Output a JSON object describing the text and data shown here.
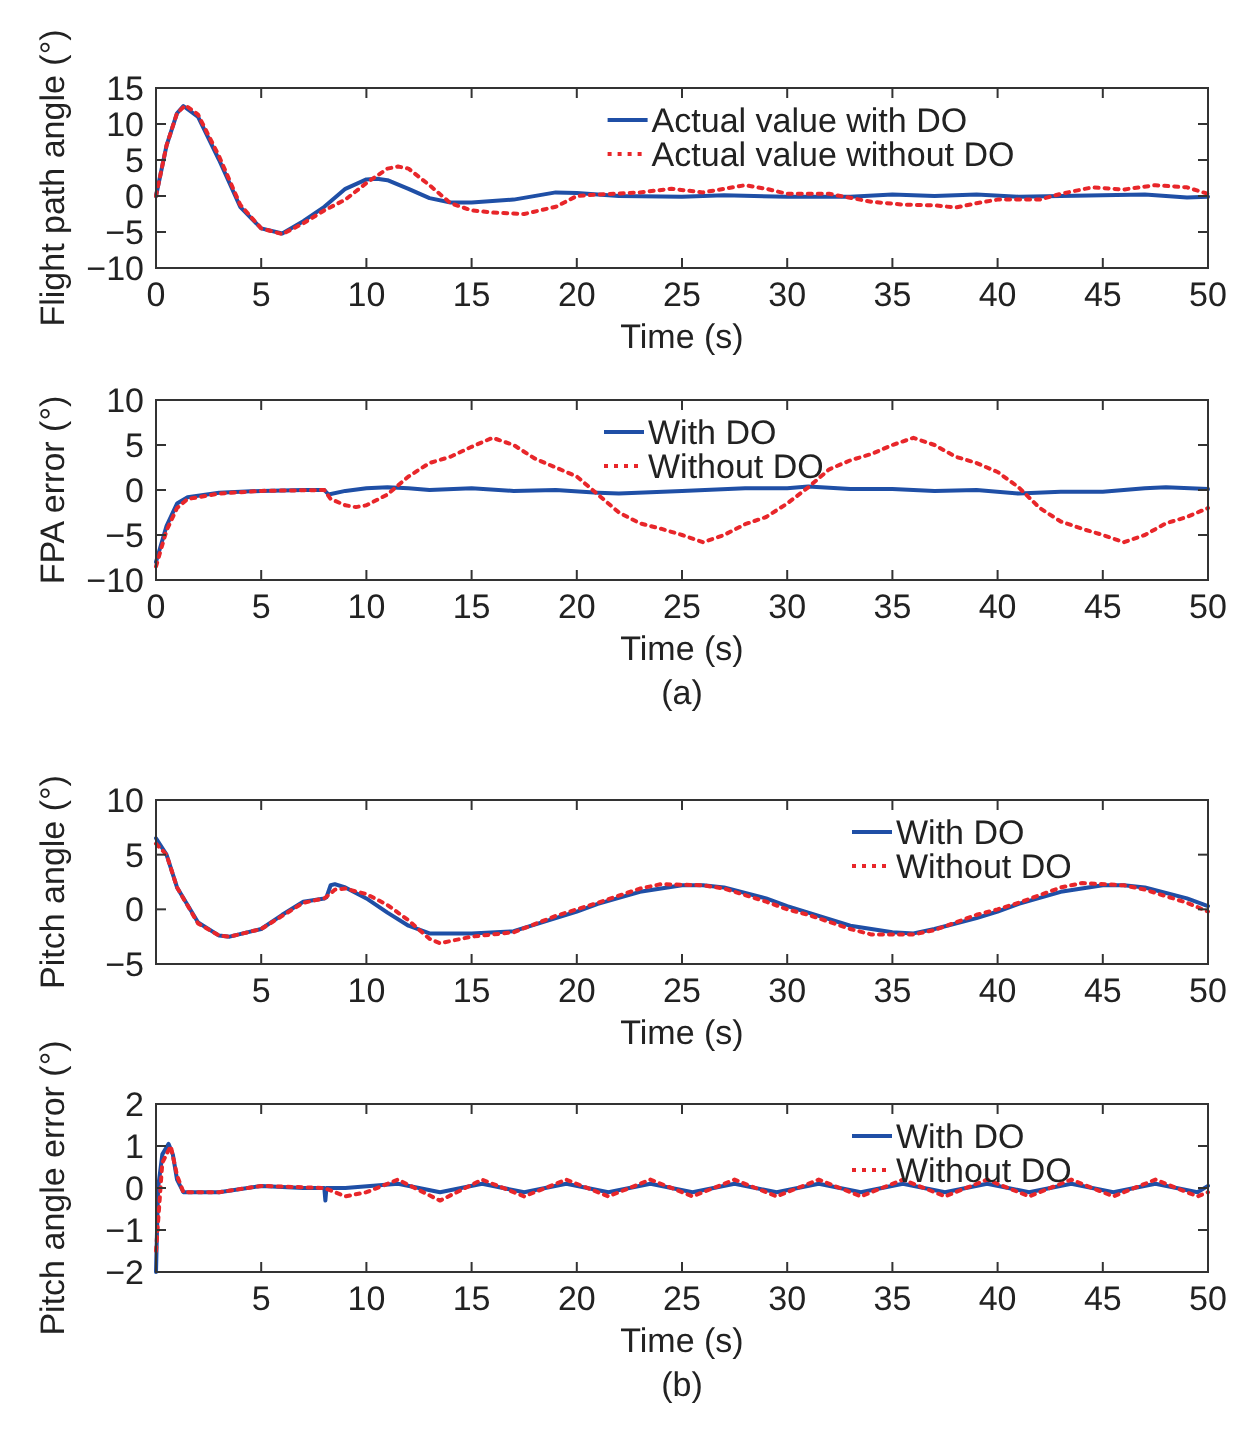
{
  "chart_data": [
    {
      "type": "line",
      "xlabel": "Time (s)",
      "ylabel": "Flight path angle (°)",
      "xlim": [
        0,
        50
      ],
      "xticks": [
        0,
        5,
        10,
        15,
        20,
        25,
        30,
        35,
        40,
        45,
        50
      ],
      "ylim": [
        -10,
        15
      ],
      "yticks": [
        {
          "value": -10,
          "label": "−10"
        },
        {
          "value": -5,
          "label": "−5"
        },
        0,
        5,
        10,
        15
      ],
      "grid": false,
      "legend": "top right",
      "series": [
        {
          "name": "Actual value with DO",
          "color": "#1f4fa6",
          "line_style": "solid",
          "x": [
            0,
            0.5,
            1,
            1.3,
            2,
            3,
            4,
            5,
            6,
            7,
            8,
            9,
            10,
            10.5,
            11,
            12,
            13,
            14,
            15,
            17,
            19,
            20,
            22,
            25,
            27,
            30,
            33,
            35,
            37,
            39,
            41,
            43,
            45,
            47,
            49,
            50
          ],
          "values": [
            0,
            7,
            11.5,
            12.5,
            11,
            5,
            -1.5,
            -4.5,
            -5.2,
            -3.5,
            -1.5,
            1,
            2.3,
            2.4,
            2.2,
            1,
            -0.3,
            -0.9,
            -0.9,
            -0.5,
            0.5,
            0.4,
            0,
            -0.1,
            0.1,
            -0.1,
            -0.1,
            0.2,
            0,
            0.2,
            -0.1,
            0,
            0.1,
            0.2,
            -0.2,
            -0.1
          ]
        },
        {
          "name": "Actual value without DO",
          "color": "#e8262a",
          "line_style": "dotted",
          "x": [
            0,
            0.5,
            1,
            1.4,
            2,
            3,
            4,
            5,
            6,
            7,
            8,
            9,
            10,
            11,
            11.5,
            12,
            13,
            14,
            15,
            16,
            17.5,
            19,
            20,
            21,
            23,
            24.5,
            26,
            28,
            29,
            30,
            32,
            34,
            35.5,
            37,
            38,
            39,
            40,
            42,
            43,
            44.5,
            46,
            47.5,
            49,
            50
          ],
          "values": [
            0,
            7,
            11.5,
            12.6,
            11.3,
            5.5,
            -1.2,
            -4.5,
            -5.3,
            -3.8,
            -2,
            -0.5,
            1.8,
            3.8,
            4.1,
            3.8,
            1.5,
            -1,
            -2,
            -2.3,
            -2.5,
            -1.5,
            0,
            0.2,
            0.5,
            1,
            0.5,
            1.5,
            1,
            0.3,
            0.3,
            -0.8,
            -1.2,
            -1.3,
            -1.6,
            -1,
            -0.5,
            -0.5,
            0.3,
            1.2,
            0.9,
            1.5,
            1.2,
            0.3
          ]
        }
      ]
    },
    {
      "type": "line",
      "xlabel": "Time (s)",
      "ylabel": "FPA error (°)",
      "annotations": [
        "(a)"
      ],
      "xlim": [
        0,
        50
      ],
      "xticks": [
        0,
        5,
        10,
        15,
        20,
        25,
        30,
        35,
        40,
        45,
        50
      ],
      "ylim": [
        -10,
        10
      ],
      "yticks": [
        {
          "value": -10,
          "label": "−10"
        },
        {
          "value": -5,
          "label": "−5"
        },
        0,
        5,
        10
      ],
      "grid": false,
      "legend": "top",
      "series": [
        {
          "name": "With DO",
          "color": "#1f4fa6",
          "line_style": "solid",
          "x": [
            0,
            0.5,
            1,
            1.5,
            3,
            5,
            7,
            8,
            8.2,
            9,
            10,
            11,
            12,
            13,
            15,
            17,
            19,
            21,
            22,
            25,
            28,
            30,
            31,
            33,
            35,
            37,
            39,
            41,
            43,
            45,
            47,
            48,
            50
          ],
          "values": [
            -8,
            -4,
            -1.5,
            -0.8,
            -0.3,
            -0.1,
            0,
            0,
            -0.5,
            -0.1,
            0.2,
            0.3,
            0.2,
            0,
            0.2,
            -0.1,
            0,
            -0.3,
            -0.4,
            -0.1,
            0.2,
            0.2,
            0.4,
            0.1,
            0.1,
            -0.1,
            0,
            -0.4,
            -0.2,
            -0.2,
            0.2,
            0.3,
            0.1
          ]
        },
        {
          "name": "Without DO",
          "color": "#e8262a",
          "line_style": "dotted",
          "x": [
            0,
            0.5,
            1,
            1.5,
            3,
            5,
            8,
            8.3,
            9,
            9.5,
            10,
            11,
            12,
            13,
            14,
            15,
            16,
            17,
            18,
            19,
            20,
            21,
            22,
            23,
            24,
            25,
            26,
            27,
            28,
            29,
            30,
            31,
            32,
            33,
            34,
            35,
            36,
            37,
            38,
            39,
            40,
            41,
            42,
            43,
            44,
            45,
            46,
            47,
            48,
            49,
            50
          ],
          "values": [
            -8.5,
            -4.5,
            -2,
            -1,
            -0.4,
            -0.1,
            0,
            -1,
            -1.7,
            -1.9,
            -1.7,
            -0.5,
            1.5,
            3,
            3.7,
            4.8,
            5.8,
            5,
            3.5,
            2.5,
            1.5,
            -0.5,
            -2.5,
            -3.7,
            -4.3,
            -5,
            -5.8,
            -5,
            -3.8,
            -3,
            -1.5,
            0.3,
            2.3,
            3.3,
            4,
            5,
            5.8,
            5,
            3.7,
            3,
            2,
            0.3,
            -2,
            -3.5,
            -4.3,
            -5,
            -5.8,
            -5,
            -3.7,
            -3,
            -2
          ]
        }
      ]
    },
    {
      "type": "line",
      "xlabel": "Time (s)",
      "ylabel": "Pitch angle (°)",
      "xlim": [
        0,
        50
      ],
      "xticks": [
        5,
        10,
        15,
        20,
        25,
        30,
        35,
        40,
        45,
        50
      ],
      "ylim": [
        -5,
        10
      ],
      "yticks": [
        {
          "value": -5,
          "label": "−5"
        },
        0,
        5,
        10
      ],
      "grid": false,
      "legend": "top right",
      "series": [
        {
          "name": "With DO",
          "color": "#1f4fa6",
          "line_style": "solid",
          "x": [
            0,
            0.5,
            1,
            2,
            3,
            3.5,
            5,
            6,
            7,
            8,
            8.1,
            8.3,
            8.5,
            9,
            10,
            11,
            12,
            13,
            15,
            17,
            19,
            20,
            21,
            23,
            25,
            26,
            27,
            29,
            30,
            31,
            33,
            35,
            36,
            37,
            39,
            40,
            41,
            43,
            45,
            46,
            47,
            49,
            50
          ],
          "values": [
            6.5,
            5,
            2,
            -1.2,
            -2.4,
            -2.5,
            -1.8,
            -0.5,
            0.7,
            1,
            1.1,
            2.2,
            2.3,
            2,
            1,
            -0.3,
            -1.5,
            -2.2,
            -2.2,
            -2,
            -0.8,
            -0.2,
            0.5,
            1.6,
            2.2,
            2.2,
            2,
            1,
            0.3,
            -0.3,
            -1.5,
            -2.1,
            -2.2,
            -1.8,
            -0.8,
            -0.2,
            0.5,
            1.6,
            2.2,
            2.2,
            2,
            1,
            0.3
          ]
        },
        {
          "name": "Without DO",
          "color": "#e8262a",
          "line_style": "dotted",
          "x": [
            0,
            0.5,
            1,
            2,
            3,
            3.5,
            5,
            6,
            7,
            8,
            8.2,
            8.5,
            9,
            10,
            11,
            12,
            13,
            13.5,
            14,
            15,
            17,
            19,
            20,
            21,
            23,
            24,
            26,
            27,
            29,
            30,
            31,
            33,
            34,
            36,
            37,
            39,
            40,
            41,
            43,
            44,
            46,
            47,
            49,
            50
          ],
          "values": [
            6,
            5,
            2,
            -1.3,
            -2.4,
            -2.5,
            -1.8,
            -0.6,
            0.6,
            1,
            1.3,
            1.8,
            1.9,
            1.4,
            0.4,
            -1,
            -2.7,
            -3.1,
            -2.9,
            -2.5,
            -2.1,
            -0.6,
            0,
            0.6,
            1.9,
            2.3,
            2.2,
            1.9,
            0.7,
            0,
            -0.5,
            -1.8,
            -2.3,
            -2.3,
            -1.9,
            -0.5,
            0,
            0.6,
            2,
            2.4,
            2.2,
            1.8,
            0.6,
            -0.2
          ]
        }
      ]
    },
    {
      "type": "line",
      "xlabel": "Time (s)",
      "ylabel": "Pitch angle error (°)",
      "annotations": [
        "(b)"
      ],
      "xlim": [
        0,
        50
      ],
      "xticks": [
        5,
        10,
        15,
        20,
        25,
        30,
        35,
        40,
        45,
        50
      ],
      "ylim": [
        -2,
        2
      ],
      "yticks": [
        {
          "value": -2,
          "label": "−2"
        },
        {
          "value": -1,
          "label": "−1"
        },
        0,
        1,
        2
      ],
      "grid": false,
      "legend": "top right",
      "series": [
        {
          "name": "With DO",
          "color": "#1f4fa6",
          "line_style": "solid",
          "x": [
            0,
            0.1,
            0.3,
            0.6,
            0.8,
            1,
            1.3,
            3,
            5,
            7,
            8,
            8.05,
            8.1,
            9,
            11.5,
            13.5,
            15.5,
            17.5,
            19.5,
            21.5,
            23.5,
            25.5,
            27.5,
            29.5,
            31.5,
            33.5,
            35.5,
            37.5,
            39.5,
            41.5,
            43.5,
            45.5,
            47.5,
            49.5,
            50
          ],
          "values": [
            -2,
            0,
            0.8,
            1.05,
            0.8,
            0.2,
            -0.1,
            -0.1,
            0.05,
            0,
            0,
            -0.3,
            0,
            0,
            0.1,
            -0.1,
            0.1,
            -0.1,
            0.1,
            -0.1,
            0.1,
            -0.1,
            0.1,
            -0.1,
            0.1,
            -0.1,
            0.1,
            -0.1,
            0.1,
            -0.1,
            0.1,
            -0.1,
            0.1,
            -0.1,
            0.05
          ]
        },
        {
          "name": "Without DO",
          "color": "#e8262a",
          "line_style": "dotted",
          "x": [
            0,
            0.3,
            0.7,
            1,
            1.3,
            3,
            5,
            8,
            9,
            10,
            11.5,
            13.5,
            15.5,
            17.5,
            19.5,
            21.5,
            23.5,
            25.5,
            27.5,
            29.5,
            31.5,
            33.5,
            35.5,
            37.5,
            39.5,
            41.5,
            43.5,
            45.5,
            47.5,
            49.5,
            50
          ],
          "values": [
            -1.5,
            0.6,
            1,
            0.3,
            -0.1,
            -0.1,
            0.05,
            0,
            -0.2,
            -0.1,
            0.2,
            -0.3,
            0.2,
            -0.2,
            0.2,
            -0.2,
            0.2,
            -0.2,
            0.2,
            -0.2,
            0.2,
            -0.2,
            0.2,
            -0.2,
            0.2,
            -0.2,
            0.2,
            -0.2,
            0.2,
            -0.2,
            -0.1
          ]
        }
      ]
    }
  ]
}
